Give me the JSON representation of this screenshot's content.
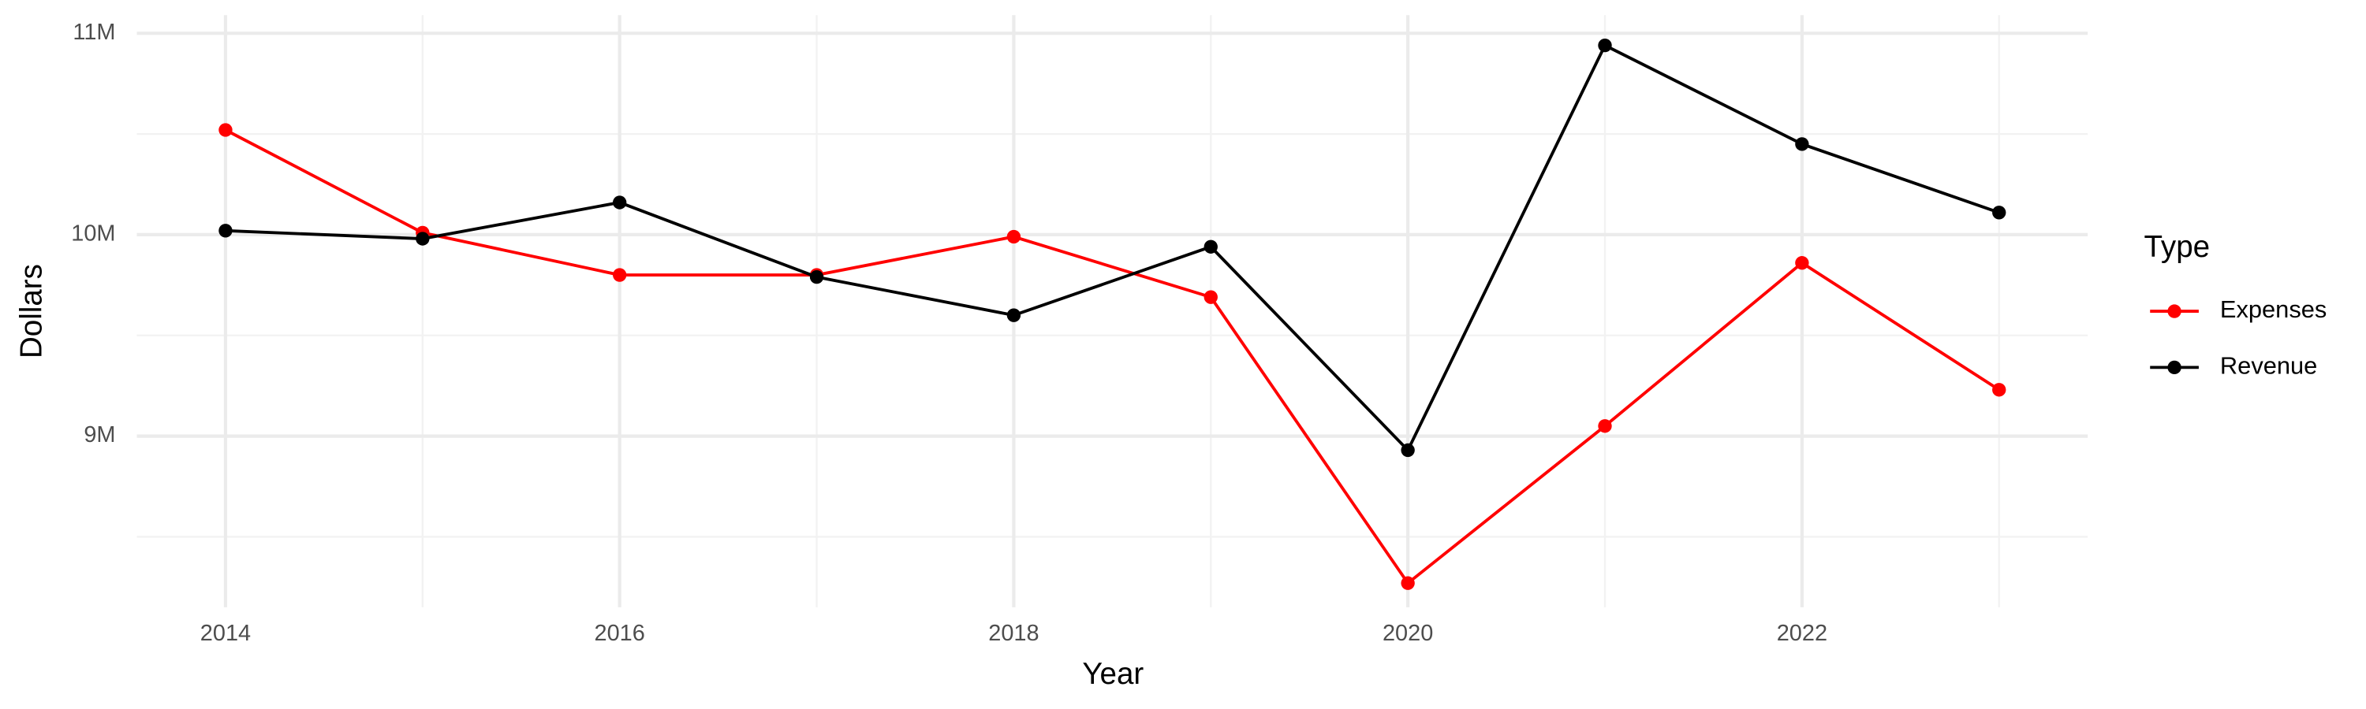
{
  "chart_data": {
    "type": "line",
    "x_label": "Year",
    "y_label": "Dollars",
    "x": [
      2014,
      2015,
      2016,
      2017,
      2018,
      2019,
      2020,
      2021,
      2022,
      2023
    ],
    "series": [
      {
        "name": "Expenses",
        "color": "#ff0000",
        "values": [
          10520000,
          10010000,
          9800000,
          9800000,
          9990000,
          9690000,
          8270000,
          9050000,
          9860000,
          9230000
        ]
      },
      {
        "name": "Revenue",
        "color": "#000000",
        "values": [
          10020000,
          9980000,
          10160000,
          9790000,
          9600000,
          9940000,
          8930000,
          10940000,
          10450000,
          10110000
        ]
      }
    ],
    "xlim": [
      2013.55,
      2023.45
    ],
    "xticks": [
      2014,
      2016,
      2018,
      2020,
      2022
    ],
    "minor_xticks": [
      2015,
      2017,
      2019,
      2021,
      2023
    ],
    "ylim": [
      8150000,
      11090000
    ],
    "yticks": [
      {
        "value": 9000000,
        "label": "9M"
      },
      {
        "value": 10000000,
        "label": "10M"
      },
      {
        "value": 11000000,
        "label": "11M"
      }
    ],
    "minor_yticks": [
      8500000,
      9500000,
      10500000
    ],
    "grid": true,
    "legend_title": "Type",
    "legend_position": "right"
  }
}
